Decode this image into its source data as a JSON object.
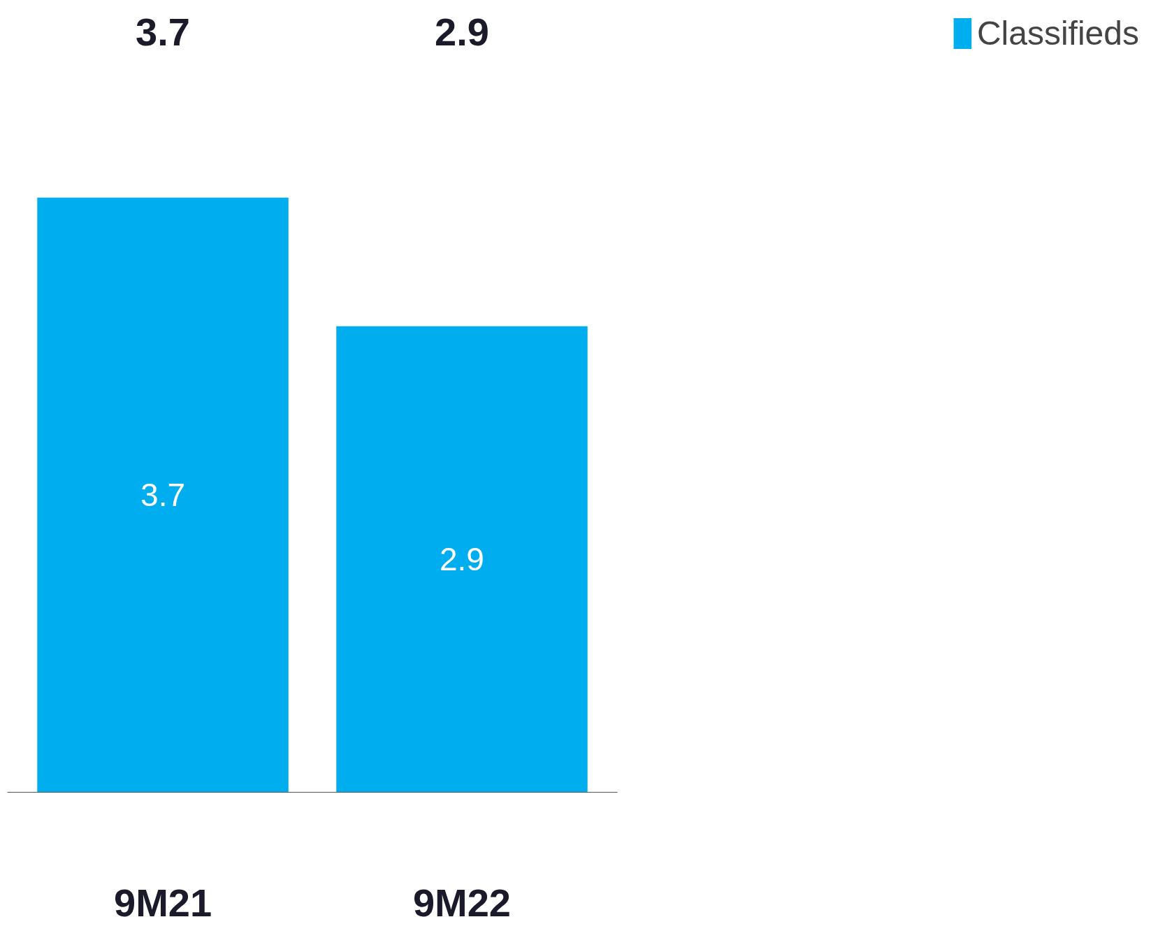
{
  "chart_data": {
    "type": "bar",
    "categories": [
      "9M21",
      "9M22"
    ],
    "series": [
      {
        "name": "Classifieds",
        "color": "#00aeef",
        "values": [
          3.7,
          2.9
        ]
      }
    ],
    "data_labels": true,
    "totals": [
      "3.7",
      "2.9"
    ],
    "legend": "right",
    "grid": false
  }
}
